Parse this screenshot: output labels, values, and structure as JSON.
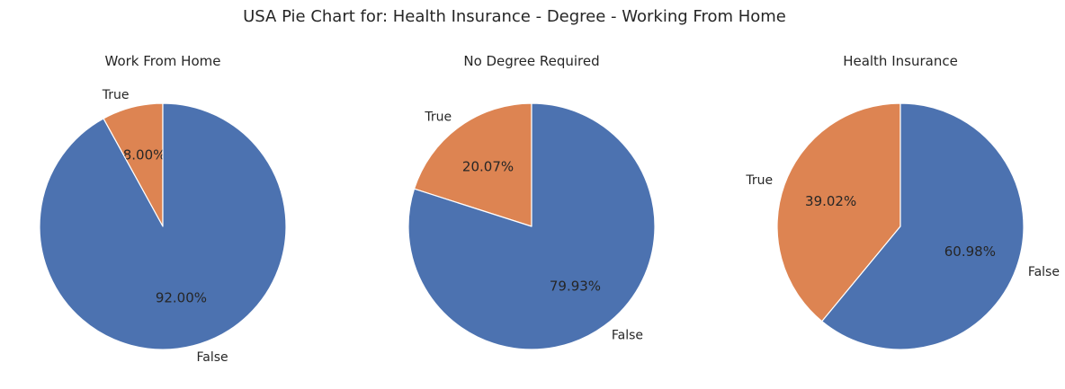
{
  "title": "USA Pie Chart for: Health Insurance - Degree - Working From Home",
  "colors": {
    "False": "#4c72b0",
    "True": "#dd8452",
    "edge": "#ffffff"
  },
  "chart_data": [
    {
      "type": "pie",
      "title": "Work From Home",
      "labels": [
        "True",
        "False"
      ],
      "values": [
        8.0,
        92.0
      ],
      "pct_labels": [
        "8.00%",
        "92.00%"
      ]
    },
    {
      "type": "pie",
      "title": "No Degree Required",
      "labels": [
        "True",
        "False"
      ],
      "values": [
        20.07,
        79.93
      ],
      "pct_labels": [
        "20.07%",
        "79.93%"
      ]
    },
    {
      "type": "pie",
      "title": "Health Insurance",
      "labels": [
        "True",
        "False"
      ],
      "values": [
        39.02,
        60.98
      ],
      "pct_labels": [
        "39.02%",
        "60.98%"
      ]
    }
  ]
}
